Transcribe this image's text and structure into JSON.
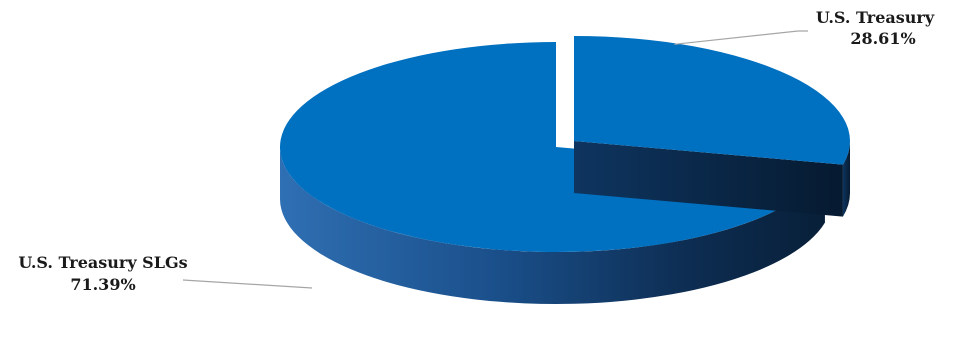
{
  "chart_data": {
    "type": "pie",
    "style": "3d-exploded",
    "categories": [
      "U.S. Treasury",
      "U.S. Treasury SLGs"
    ],
    "values": [
      28.61,
      71.39
    ],
    "value_labels": [
      "28.61%",
      "71.39%"
    ],
    "unit": "%",
    "exploded": "U.S. Treasury",
    "legend": "none",
    "colors": {
      "top": "#0070c0",
      "side_light": "#2f6fb3",
      "side_dark": "#0b2540",
      "leader_line": "#a6a6a6"
    }
  }
}
